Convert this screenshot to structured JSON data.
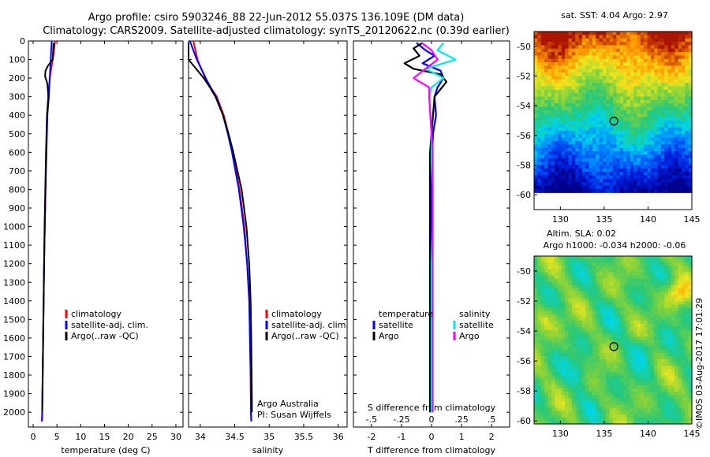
{
  "title": {
    "line1": "Argo profile: csiro 5903246_88 22-Jun-2012 55.037S 136.109E (DM data)",
    "line2": "Climatology: CARS2009. Satellite-adjusted climatology: synTS_20120622.nc (0.39d earlier)"
  },
  "credit": "©IMOS 03-Aug-2017 17:01:29",
  "colors": {
    "climatology": "#ff0000",
    "satellite": "#0000ff",
    "argo": "#000000",
    "sal_satellite": "#00e5e5",
    "sal_argo": "#ff00ff"
  },
  "depth_axis": {
    "min": 0,
    "max": 2080,
    "ticks": [
      0,
      100,
      200,
      300,
      400,
      500,
      600,
      700,
      800,
      900,
      1000,
      1100,
      1200,
      1300,
      1400,
      1500,
      1600,
      1700,
      1800,
      1900,
      2000
    ]
  },
  "chart_data": [
    {
      "type": "line",
      "id": "temperature",
      "xlabel": "temperature (deg C)",
      "ylabel": "",
      "xlim": [
        -1,
        31.5
      ],
      "xticks": [
        0,
        5,
        10,
        15,
        20,
        25,
        30
      ],
      "legend": [
        "climatology",
        "satellite-adj. clim.",
        "Argo(..raw -QC)"
      ],
      "series": [
        {
          "name": "climatology",
          "color": "#ff0000",
          "depth": [
            0,
            50,
            100,
            150,
            200,
            300,
            400,
            600,
            800,
            1000,
            1200,
            1400,
            1600,
            1800,
            2000,
            2050
          ],
          "values": [
            4.6,
            4.4,
            4.1,
            3.8,
            3.5,
            3.2,
            2.95,
            2.75,
            2.6,
            2.45,
            2.3,
            2.2,
            2.1,
            2.0,
            1.9,
            1.85
          ]
        },
        {
          "name": "satellite-adj. clim.",
          "color": "#0000ff",
          "depth": [
            0,
            50,
            100,
            150,
            200,
            300,
            400,
            600,
            800,
            1000,
            1200,
            1400,
            1600,
            1800,
            2000,
            2050
          ],
          "values": [
            3.9,
            3.8,
            3.7,
            3.6,
            3.5,
            3.3,
            3.0,
            2.8,
            2.6,
            2.45,
            2.3,
            2.2,
            2.1,
            2.0,
            1.9,
            1.85
          ]
        },
        {
          "name": "Argo(..raw -QC)",
          "color": "#000000",
          "depth": [
            10,
            50,
            100,
            130,
            160,
            190,
            230,
            300,
            400,
            600,
            800,
            1000,
            1200,
            1400,
            1600,
            1800,
            2000
          ],
          "values": [
            4.3,
            4.2,
            4.1,
            3.2,
            2.6,
            2.5,
            3.0,
            3.2,
            2.9,
            2.7,
            2.55,
            2.4,
            2.3,
            2.2,
            2.1,
            2.0,
            1.9
          ]
        }
      ]
    },
    {
      "type": "line",
      "id": "salinity",
      "xlabel": "salinity",
      "ylabel": "",
      "xlim": [
        33.83,
        36.13
      ],
      "xticks": [
        34,
        34.5,
        35,
        35.5,
        36
      ],
      "legend": [
        "climatology",
        "satellite-adj. clim.",
        "Argo(..raw -QC)"
      ],
      "annotation": [
        "Argo Australia",
        "PI: Susan Wijffels"
      ],
      "series": [
        {
          "name": "climatology",
          "color": "#ff0000",
          "depth": [
            0,
            100,
            200,
            250,
            300,
            400,
            500,
            600,
            800,
            1000,
            1200,
            1400,
            1600,
            1800,
            2000,
            2050
          ],
          "values": [
            33.9,
            33.96,
            34.07,
            34.15,
            34.24,
            34.34,
            34.41,
            34.47,
            34.57,
            34.64,
            34.68,
            34.71,
            34.72,
            34.73,
            34.735,
            34.74
          ]
        },
        {
          "name": "satellite-adj. clim.",
          "color": "#0000ff",
          "depth": [
            0,
            100,
            200,
            250,
            300,
            400,
            500,
            600,
            800,
            1000,
            1200,
            1400,
            1600,
            1800,
            2000,
            2050
          ],
          "values": [
            33.85,
            33.95,
            34.08,
            34.15,
            34.23,
            34.33,
            34.4,
            34.46,
            34.56,
            34.63,
            34.68,
            34.71,
            34.72,
            34.73,
            34.735,
            34.74
          ]
        },
        {
          "name": "Argo(..raw -QC)",
          "color": "#000000",
          "depth": [
            10,
            50,
            100,
            150,
            200,
            250,
            300,
            400,
            500,
            600,
            800,
            1000,
            1200,
            1400,
            1600,
            1800,
            2000
          ],
          "values": [
            33.83,
            33.83,
            33.83,
            33.94,
            34.05,
            34.14,
            34.22,
            34.33,
            34.41,
            34.48,
            34.6,
            34.67,
            34.71,
            34.73,
            34.74,
            34.745,
            34.75
          ]
        }
      ]
    },
    {
      "type": "line",
      "id": "difference",
      "xlabel": "T difference from climatology",
      "xlabel2": "S difference from climatology",
      "ylabel": "",
      "xlim": [
        -2.6,
        2.6
      ],
      "xticks": [
        -2,
        -1,
        0,
        1,
        2
      ],
      "x2lim": [
        -0.65,
        0.65
      ],
      "x2ticks": [
        -0.5,
        -0.25,
        0,
        0.25,
        0.5
      ],
      "legend_temperature": [
        "temperature",
        "satellite",
        "Argo"
      ],
      "legend_salinity": [
        "salinity",
        "satellite",
        "Argo"
      ],
      "series": [
        {
          "name": "temperature satellite",
          "axis": "T",
          "color": "#0000ff",
          "depth": [
            10,
            50,
            80,
            120,
            160,
            200,
            250,
            300,
            400,
            500,
            600,
            800,
            1000,
            1200,
            1400,
            1600,
            1800,
            2000
          ],
          "values": [
            -0.5,
            -0.2,
            0.1,
            -0.3,
            0.3,
            0.4,
            0.2,
            0.1,
            0.15,
            0.05,
            0.02,
            0.0,
            0.0,
            0.0,
            0.0,
            0.0,
            0.0,
            0.0
          ]
        },
        {
          "name": "temperature Argo",
          "axis": "T",
          "color": "#000000",
          "depth": [
            10,
            40,
            80,
            120,
            150,
            180,
            220,
            260,
            300,
            400,
            500,
            600,
            800,
            1000,
            1200,
            1400,
            1600,
            1800,
            2000
          ],
          "values": [
            -0.3,
            -0.6,
            -0.4,
            -0.9,
            -0.6,
            0.3,
            0.5,
            0.3,
            0.1,
            0.05,
            0.0,
            -0.05,
            -0.05,
            -0.05,
            -0.05,
            -0.05,
            -0.05,
            -0.05,
            -0.05
          ]
        },
        {
          "name": "salinity satellite",
          "axis": "S",
          "color": "#00e5e5",
          "depth": [
            10,
            50,
            100,
            150,
            200,
            250,
            300,
            400,
            500,
            600,
            800,
            1000,
            1200,
            1400,
            1600,
            1800,
            2000
          ],
          "values": [
            0.1,
            0.05,
            0.2,
            -0.05,
            0.1,
            0.0,
            -0.02,
            -0.01,
            0.0,
            0.0,
            0.01,
            0.01,
            0.0,
            0.0,
            0.0,
            0.0,
            0.0
          ]
        },
        {
          "name": "salinity Argo",
          "axis": "S",
          "color": "#ff00ff",
          "depth": [
            10,
            50,
            100,
            150,
            200,
            250,
            300,
            400,
            500,
            600,
            800,
            1000,
            1200,
            1400,
            1600,
            1800,
            2000
          ],
          "values": [
            -0.08,
            0.0,
            0.05,
            -0.05,
            -0.15,
            -0.02,
            -0.02,
            -0.01,
            0.0,
            0.01,
            0.01,
            0.01,
            0.01,
            0.01,
            0.01,
            0.01,
            0.01
          ]
        }
      ]
    },
    {
      "type": "heatmap",
      "id": "sst_map",
      "title": "sat. SST: 4.04  Argo: 2.97",
      "xlim": [
        127,
        145
      ],
      "ylim": [
        -61,
        -49
      ],
      "xticks": [
        130,
        135,
        140,
        145
      ],
      "yticks": [
        -50,
        -52,
        -54,
        -56,
        -58,
        -60
      ],
      "marker": {
        "lon": 136.1,
        "lat": -55.04
      }
    },
    {
      "type": "heatmap",
      "id": "sla_map",
      "title": "Altim. SLA: 0.02",
      "subtitle": "Argo h1000: -0.034  h2000: -0.06",
      "xlim": [
        127,
        145
      ],
      "ylim": [
        -60.2,
        -49
      ],
      "xticks": [
        130,
        135,
        140,
        145
      ],
      "yticks": [
        -50,
        -52,
        -54,
        -56,
        -58,
        -60
      ],
      "marker": {
        "lon": 136.1,
        "lat": -55.04
      }
    }
  ]
}
